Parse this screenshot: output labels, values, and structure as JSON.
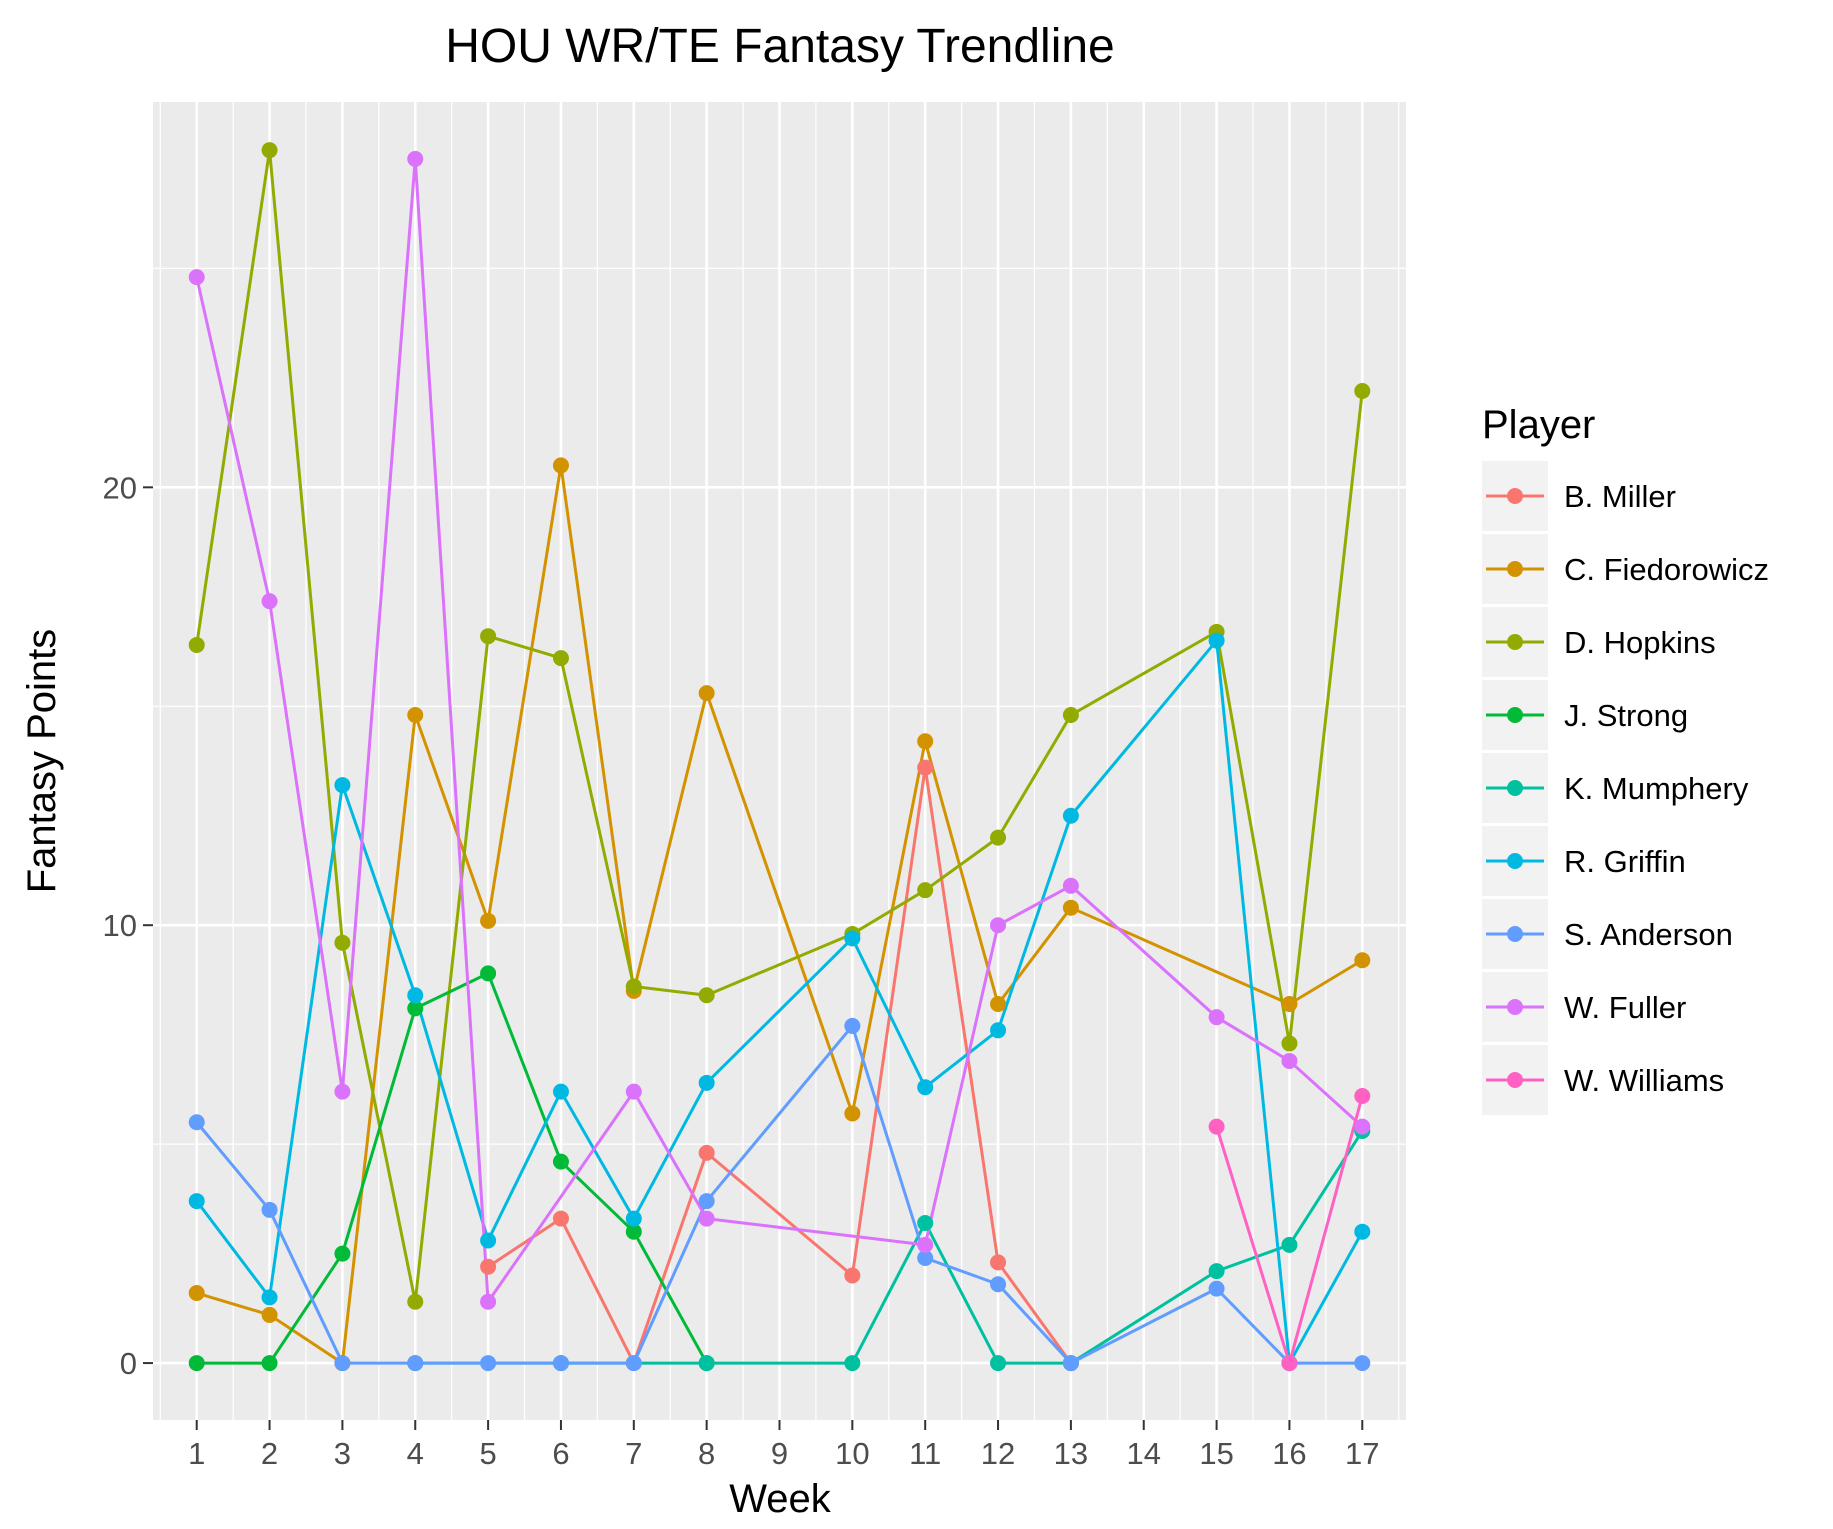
{
  "chart_data": {
    "type": "line",
    "title": "HOU WR/TE Fantasy Trendline",
    "xlabel": "Week",
    "ylabel": "Fantasy Points",
    "x": [
      "1",
      "2",
      "3",
      "4",
      "5",
      "6",
      "7",
      "8",
      "9",
      "10",
      "11",
      "12",
      "13",
      "14",
      "15",
      "16",
      "17"
    ],
    "y_ticks": [
      "0",
      "10",
      "20"
    ],
    "ylim": [
      -1.3,
      28.8
    ],
    "grid": true,
    "legend": {
      "title": "Player",
      "position": "right"
    },
    "series": [
      {
        "name": "B. Miller",
        "color": "#F8766D",
        "values": [
          null,
          null,
          null,
          null,
          2.2,
          3.3,
          0,
          4.8,
          null,
          2.0,
          13.6,
          2.3,
          0,
          null,
          null,
          null,
          null
        ]
      },
      {
        "name": "C. Fiedorowicz",
        "color": "#D39200",
        "values": [
          1.6,
          1.1,
          0,
          14.8,
          10.1,
          20.5,
          8.5,
          15.3,
          null,
          5.7,
          14.2,
          8.2,
          10.4,
          null,
          null,
          8.2,
          9.2
        ]
      },
      {
        "name": "D. Hopkins",
        "color": "#93AA00",
        "values": [
          16.4,
          27.7,
          9.6,
          1.4,
          16.6,
          16.1,
          8.6,
          8.4,
          null,
          9.8,
          10.8,
          12.0,
          14.8,
          null,
          16.7,
          7.3,
          22.2
        ]
      },
      {
        "name": "J. Strong",
        "color": "#00BA38",
        "values": [
          0,
          0,
          2.5,
          8.1,
          8.9,
          4.6,
          3.0,
          0,
          null,
          null,
          null,
          null,
          null,
          null,
          null,
          null,
          null
        ]
      },
      {
        "name": "K. Mumphery",
        "color": "#00C19F",
        "values": [
          null,
          null,
          null,
          0,
          null,
          0,
          null,
          0,
          null,
          0,
          3.2,
          0,
          0,
          null,
          2.1,
          2.7,
          5.3
        ]
      },
      {
        "name": "R. Griffin",
        "color": "#00B9E3",
        "values": [
          3.7,
          1.5,
          13.2,
          8.4,
          2.8,
          6.2,
          3.3,
          6.4,
          null,
          9.7,
          6.3,
          7.6,
          12.5,
          null,
          16.5,
          0,
          3.0
        ]
      },
      {
        "name": "S. Anderson",
        "color": "#619CFF",
        "values": [
          5.5,
          3.5,
          0,
          0,
          0,
          0,
          0,
          3.7,
          null,
          7.7,
          2.4,
          1.8,
          0,
          null,
          1.7,
          0,
          0
        ]
      },
      {
        "name": "W. Fuller",
        "color": "#DB72FB",
        "values": [
          24.8,
          17.4,
          6.2,
          27.5,
          1.4,
          null,
          6.2,
          3.3,
          null,
          null,
          2.7,
          10.0,
          10.9,
          null,
          7.9,
          6.9,
          5.4
        ]
      },
      {
        "name": "W. Williams",
        "color": "#FF61C3",
        "values": [
          null,
          null,
          null,
          null,
          null,
          null,
          null,
          null,
          null,
          null,
          null,
          null,
          null,
          null,
          5.4,
          0,
          6.1
        ]
      }
    ]
  }
}
